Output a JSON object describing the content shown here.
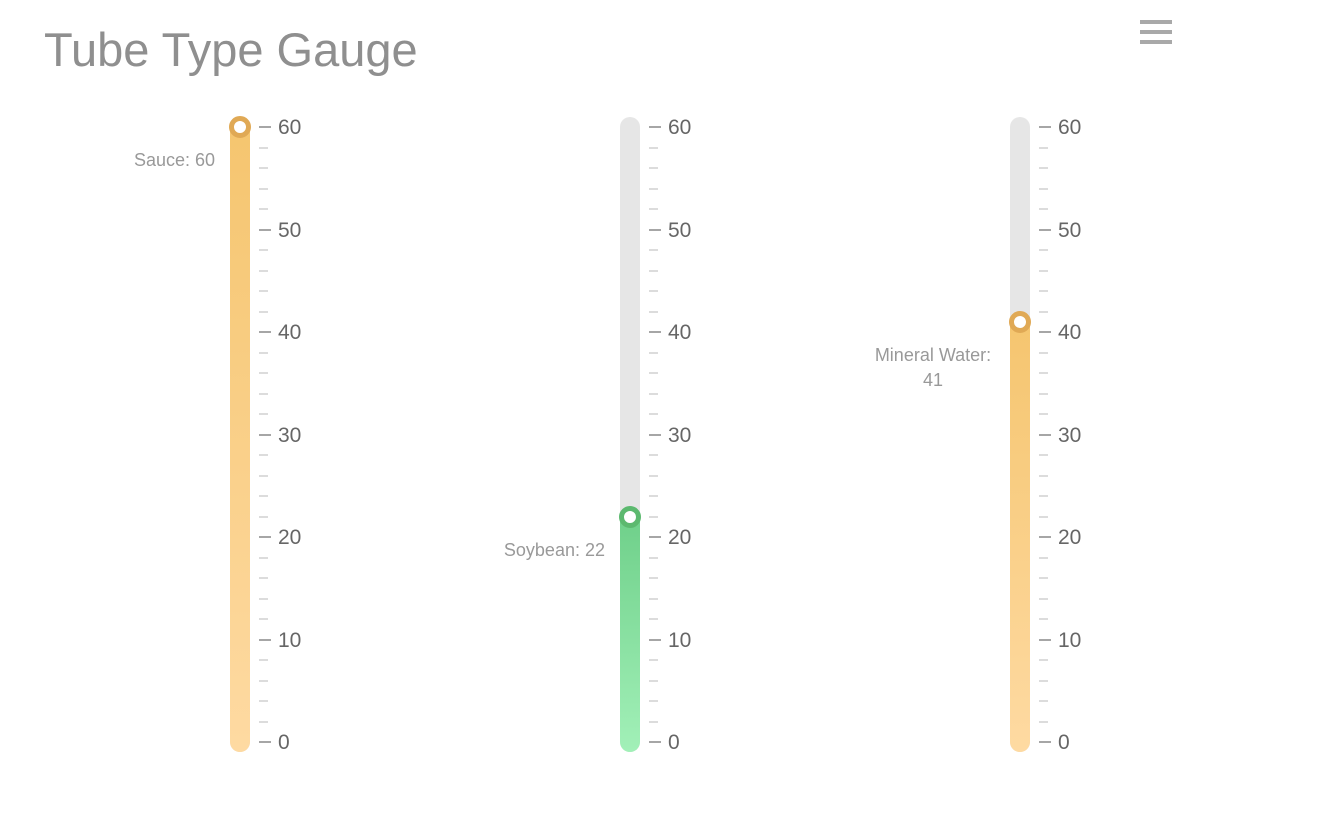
{
  "header": {
    "title": "Tube Type Gauge",
    "menu_icon": "hamburger-menu-icon"
  },
  "chart_data": {
    "type": "gauge",
    "subtype": "tube",
    "title": "Tube Type Gauge",
    "axis": {
      "min": 0,
      "max": 60,
      "major_step": 10,
      "minor_per_major": 5,
      "tick_labels": [
        "0",
        "10",
        "20",
        "30",
        "40",
        "50",
        "60"
      ]
    },
    "series": [
      {
        "name": "Sauce",
        "value": 60,
        "percent": "100%",
        "label": "Sauce: 60",
        "color_top": "#f5c56f",
        "color_bottom": "#fedaa2",
        "marker_color": "#e0a955"
      },
      {
        "name": "Soybean",
        "value": 22,
        "percent": "36.67%",
        "label": "Soybean: 22",
        "color_top": "#6fd08a",
        "color_bottom": "#a2f0b8",
        "marker_color": "#5cb96f"
      },
      {
        "name": "Mineral Water",
        "value": 41,
        "percent": "68.33%",
        "label": "Mineral Water: 41",
        "label_line1": "Mineral Water:",
        "label_line2": "41",
        "color_top": "#f5c56f",
        "color_bottom": "#fedaa2",
        "marker_color": "#e0a955"
      }
    ],
    "track_color": "#e6e6e6"
  }
}
